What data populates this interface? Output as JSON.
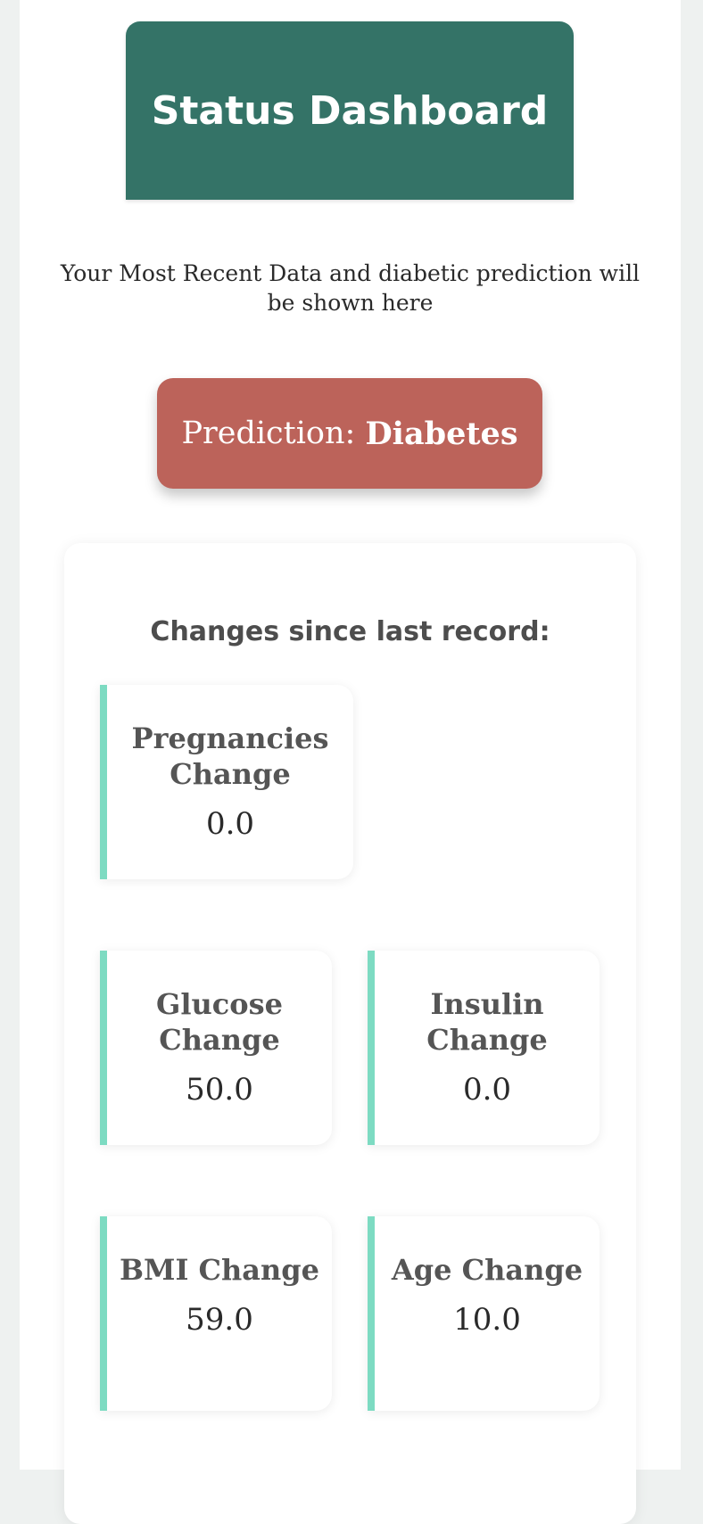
{
  "header": {
    "title": "Status Dashboard"
  },
  "subtitle": "Your Most Recent Data and diabetic prediction will be shown here",
  "prediction": {
    "label": "Prediction:",
    "value": "Diabetes",
    "color": "#bc635a"
  },
  "changes": {
    "title": "Changes since last record:",
    "items": [
      {
        "label": "Pregnancies Change",
        "value": "0.0"
      },
      {
        "label": "Glucose Change",
        "value": "50.0"
      },
      {
        "label": "Insulin Change",
        "value": "0.0"
      },
      {
        "label": "BMI Change",
        "value": "59.0"
      },
      {
        "label": "Age Change",
        "value": "10.0"
      }
    ]
  },
  "colors": {
    "header_bg": "#347367",
    "accent_border": "#7ddbc2",
    "page_bg": "#eef1f0"
  }
}
